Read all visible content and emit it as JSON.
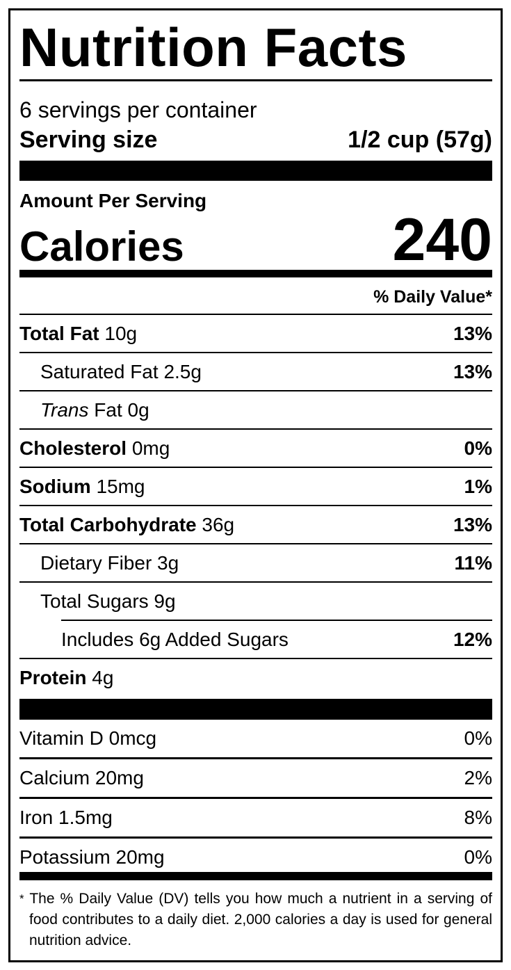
{
  "title": "Nutrition Facts",
  "servings_per_container": "6 servings per container",
  "serving_size": {
    "label": "Serving size",
    "value": "1/2 cup (57g)"
  },
  "amount_per_serving": "Amount Per Serving",
  "calories": {
    "label": "Calories",
    "value": "240"
  },
  "daily_value_header": "% Daily Value*",
  "nutrients": [
    {
      "name": "Total Fat",
      "amount": "10g",
      "dv": "13%"
    },
    {
      "name": "Saturated Fat",
      "amount": "2.5g",
      "dv": "13%"
    },
    {
      "name": "Trans",
      "suffix": "Fat",
      "amount": "0g",
      "dv": ""
    },
    {
      "name": "Cholesterol",
      "amount": "0mg",
      "dv": "0%"
    },
    {
      "name": "Sodium",
      "amount": "15mg",
      "dv": "1%"
    },
    {
      "name": "Total Carbohydrate",
      "amount": "36g",
      "dv": "13%"
    },
    {
      "name": "Dietary Fiber",
      "amount": "3g",
      "dv": "11%"
    },
    {
      "name": "Total Sugars",
      "amount": "9g",
      "dv": ""
    },
    {
      "name": "Includes 6g Added Sugars",
      "amount": "",
      "dv": "12%"
    },
    {
      "name": "Protein",
      "amount": "4g",
      "dv": ""
    }
  ],
  "vitamins": [
    {
      "name": "Vitamin D 0mcg",
      "dv": "0%"
    },
    {
      "name": "Calcium 20mg",
      "dv": "2%"
    },
    {
      "name": "Iron 1.5mg",
      "dv": "8%"
    },
    {
      "name": "Potassium 20mg",
      "dv": "0%"
    }
  ],
  "footnote": {
    "asterisk": "*",
    "text": "The % Daily Value (DV) tells you how much a nutrient in a serving of food contributes to a daily diet. 2,000 calories a day is used for general nutrition advice."
  }
}
